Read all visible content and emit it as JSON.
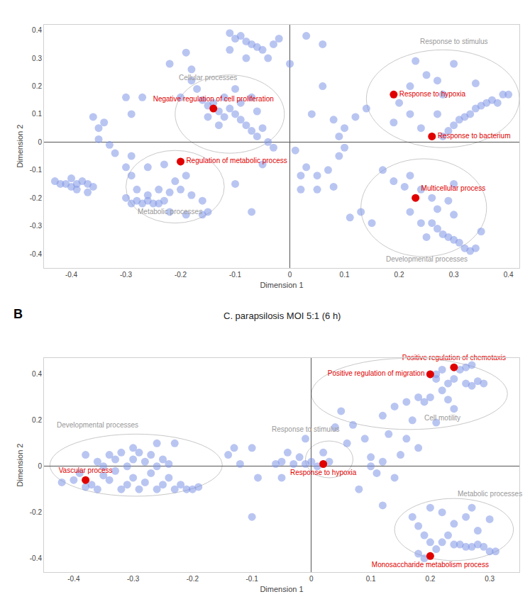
{
  "chart_data": [
    {
      "type": "scatter",
      "x_label": "Dimension 1",
      "y_label": "Dimension 2",
      "xlim": [
        -0.45,
        0.42
      ],
      "ylim": [
        -0.45,
        0.42
      ],
      "xticks": [
        -0.4,
        -0.3,
        -0.2,
        -0.1,
        0,
        0.1,
        0.2,
        0.3,
        0.4
      ],
      "yticks": [
        -0.4,
        -0.3,
        -0.2,
        -0.1,
        0,
        0.1,
        0.2,
        0.3,
        0.4
      ],
      "color": "#8096e6",
      "x": [
        -0.43,
        -0.42,
        -0.41,
        -0.4,
        -0.39,
        -0.38,
        -0.37,
        -0.36,
        -0.4,
        -0.39,
        -0.37,
        -0.36,
        -0.35,
        -0.34,
        -0.35,
        -0.33,
        -0.32,
        -0.3,
        -0.29,
        -0.27,
        -0.29,
        -0.29,
        -0.28,
        -0.3,
        -0.29,
        -0.28,
        -0.27,
        -0.26,
        -0.25,
        -0.24,
        -0.23,
        -0.26,
        -0.24,
        -0.22,
        -0.2,
        -0.21,
        -0.19,
        -0.22,
        -0.19,
        -0.16,
        -0.15,
        -0.16,
        -0.18,
        -0.23,
        -0.26,
        -0.3,
        -0.2,
        -0.18,
        -0.17,
        -0.16,
        -0.15,
        -0.14,
        -0.13,
        -0.12,
        -0.11,
        -0.1,
        -0.09,
        -0.08,
        -0.07,
        -0.06,
        -0.05,
        -0.04,
        -0.03,
        -0.12,
        -0.09,
        -0.07,
        -0.06,
        -0.1,
        -0.13,
        -0.15,
        -0.11,
        -0.1,
        -0.09,
        -0.08,
        -0.07,
        -0.06,
        -0.05,
        -0.04,
        -0.03,
        -0.02,
        0.03,
        -0.08,
        -0.11,
        0.06,
        0.0,
        -0.19,
        -0.22,
        -0.18,
        -0.05,
        0.01,
        0.03,
        0.05,
        0.07,
        0.09,
        0.1,
        0.09,
        0.1,
        0.08,
        0.12,
        0.14,
        0.02,
        0.05,
        0.08,
        -0.07,
        -0.1,
        0.13,
        0.15,
        0.11,
        0.02,
        0.06,
        0.04,
        0.19,
        0.2,
        0.22,
        0.23,
        0.25,
        0.27,
        0.28,
        0.27,
        0.24,
        0.29,
        0.3,
        0.31,
        0.32,
        0.33,
        0.34,
        0.35,
        0.36,
        0.37,
        0.38,
        0.39,
        0.4,
        0.34,
        0.3,
        0.22,
        0.28,
        0.17,
        0.19,
        0.21,
        0.22,
        0.24,
        0.26,
        0.27,
        0.26,
        0.27,
        0.28,
        0.29,
        0.3,
        0.31,
        0.32,
        0.33,
        0.34,
        0.25,
        0.29,
        0.3,
        0.35,
        0.3,
        0.22,
        0.24
      ],
      "y": [
        -0.14,
        -0.15,
        -0.15,
        -0.16,
        -0.15,
        -0.14,
        -0.15,
        -0.16,
        -0.13,
        -0.17,
        -0.18,
        0.09,
        0.05,
        0.07,
        0.01,
        -0.01,
        -0.04,
        0.16,
        0.1,
        0.16,
        -0.05,
        -0.12,
        -0.17,
        -0.2,
        -0.22,
        -0.21,
        -0.22,
        -0.21,
        -0.22,
        -0.22,
        -0.21,
        -0.19,
        -0.17,
        -0.18,
        -0.17,
        -0.14,
        -0.12,
        -0.25,
        -0.26,
        -0.26,
        -0.25,
        -0.21,
        -0.19,
        -0.08,
        -0.09,
        -0.09,
        0.16,
        0.22,
        0.19,
        0.15,
        0.13,
        0.14,
        0.11,
        0.09,
        0.12,
        0.1,
        0.08,
        0.06,
        0.04,
        0.02,
        0.05,
        0.0,
        -0.02,
        0.16,
        0.14,
        0.16,
        0.11,
        0.19,
        0.06,
        0.09,
        0.39,
        0.37,
        0.38,
        0.36,
        0.35,
        0.34,
        0.33,
        0.3,
        0.35,
        0.37,
        0.38,
        0.3,
        0.33,
        0.35,
        0.28,
        0.32,
        0.28,
        0.26,
        -0.08,
        -0.03,
        -0.09,
        -0.12,
        -0.1,
        -0.05,
        -0.02,
        0.02,
        0.05,
        0.08,
        0.09,
        0.12,
        -0.17,
        -0.17,
        -0.16,
        -0.25,
        -0.15,
        -0.25,
        -0.29,
        -0.27,
        -0.12,
        0.2,
        0.1,
        0.07,
        0.14,
        0.2,
        0.29,
        0.24,
        0.22,
        0.17,
        0.1,
        0.05,
        0.04,
        0.06,
        0.08,
        0.09,
        0.1,
        0.12,
        0.13,
        0.14,
        0.15,
        0.14,
        0.17,
        0.17,
        0.21,
        0.28,
        0.1,
        0.02,
        -0.1,
        -0.14,
        -0.16,
        -0.12,
        -0.17,
        -0.2,
        -0.24,
        -0.29,
        -0.31,
        -0.33,
        -0.34,
        -0.35,
        -0.36,
        -0.38,
        -0.39,
        -0.38,
        -0.34,
        -0.21,
        -0.26,
        -0.32,
        -0.15,
        -0.25,
        -0.29
      ],
      "highlights": {
        "color": "#e00000",
        "points": [
          {
            "label": "Negative regulation of cell proliferation",
            "x": -0.14,
            "y": 0.12
          },
          {
            "label": "Regulation of metabolic process",
            "x": -0.2,
            "y": -0.07
          },
          {
            "label": "Response to hypoxia",
            "x": 0.19,
            "y": 0.17
          },
          {
            "label": "Response to bacterium",
            "x": 0.26,
            "y": 0.02
          },
          {
            "label": "Multicellular process",
            "x": 0.23,
            "y": -0.2
          }
        ]
      },
      "clusters": [
        {
          "label": "Response to stimulus",
          "x": 0.3,
          "y": 0.36,
          "bounds": [
            0.14,
            0.42,
            -0.02,
            0.33
          ]
        },
        {
          "label": "Cellular processes",
          "x": -0.15,
          "y": 0.23,
          "bounds": [
            -0.21,
            -0.01,
            -0.04,
            0.24
          ]
        },
        {
          "label": "Metabolic processes",
          "x": -0.22,
          "y": -0.25,
          "bounds": [
            -0.3,
            -0.12,
            -0.29,
            -0.03
          ]
        },
        {
          "label": "Developmental processes",
          "x": 0.25,
          "y": -0.42,
          "bounds": [
            0.13,
            0.36,
            -0.41,
            -0.06
          ]
        }
      ]
    },
    {
      "type": "scatter",
      "panel": "B",
      "title": "C. parapsilosis MOI 5:1 (6 h)",
      "x_label": "Dimension 1",
      "y_label": "Dimension 2",
      "xlim": [
        -0.45,
        0.35
      ],
      "ylim": [
        -0.46,
        0.47
      ],
      "xticks": [
        -0.4,
        -0.3,
        -0.2,
        -0.1,
        0,
        0.1,
        0.2,
        0.3
      ],
      "yticks": [
        -0.4,
        -0.2,
        0,
        0.2,
        0.4
      ],
      "color": "#8096e6",
      "x": [
        -0.42,
        -0.4,
        -0.39,
        -0.38,
        -0.37,
        -0.36,
        -0.35,
        -0.34,
        -0.33,
        -0.32,
        -0.31,
        -0.3,
        -0.29,
        -0.28,
        -0.27,
        -0.26,
        -0.25,
        -0.24,
        -0.23,
        -0.22,
        -0.21,
        -0.2,
        -0.19,
        -0.34,
        -0.33,
        -0.32,
        -0.31,
        -0.3,
        -0.29,
        -0.28,
        -0.27,
        -0.26,
        -0.25,
        -0.24,
        -0.23,
        -0.26,
        -0.3,
        -0.36,
        -0.35,
        -0.38,
        -0.14,
        -0.13,
        -0.12,
        -0.1,
        -0.09,
        -0.1,
        -0.06,
        -0.05,
        -0.04,
        -0.02,
        -0.01,
        0.0,
        0.01,
        0.03,
        0.02,
        -0.01,
        0.04,
        0.05,
        0.07,
        0.06,
        0.09,
        0.1,
        0.12,
        0.11,
        0.1,
        0.13,
        0.08,
        0.12,
        0.14,
        0.15,
        0.16,
        0.18,
        -0.05,
        -0.03,
        0.12,
        0.14,
        0.16,
        0.18,
        0.2,
        0.22,
        0.23,
        0.24,
        0.25,
        0.26,
        0.27,
        0.26,
        0.27,
        0.28,
        0.29,
        0.2,
        0.21,
        0.21,
        0.22,
        0.19,
        0.23,
        0.17,
        0.21,
        0.24,
        0.17,
        0.18,
        0.19,
        0.2,
        0.21,
        0.22,
        0.23,
        0.24,
        0.25,
        0.26,
        0.27,
        0.28,
        0.29,
        0.3,
        0.31,
        0.24,
        0.26,
        0.22,
        0.2,
        0.28,
        0.3,
        0.27,
        0.18,
        0.19
      ],
      "y": [
        -0.07,
        -0.06,
        -0.03,
        -0.09,
        -0.08,
        -0.1,
        -0.04,
        -0.06,
        -0.02,
        -0.1,
        -0.08,
        -0.05,
        -0.1,
        -0.07,
        -0.03,
        -0.1,
        -0.08,
        -0.05,
        -0.1,
        -0.08,
        -0.1,
        -0.1,
        -0.09,
        0.05,
        0.03,
        0.06,
        0.0,
        0.03,
        0.06,
        0.02,
        0.05,
        0.0,
        0.03,
        0.01,
        0.1,
        0.1,
        0.08,
        0.02,
        0.0,
        0.05,
        0.05,
        0.08,
        0.01,
        0.08,
        -0.05,
        -0.22,
        0.01,
        -0.05,
        0.06,
        0.04,
        0.01,
        0.02,
        0.0,
        0.02,
        0.06,
        0.12,
        0.17,
        0.24,
        0.18,
        0.1,
        0.12,
        0.04,
        0.02,
        -0.03,
        0.0,
        0.14,
        -0.1,
        -0.17,
        -0.05,
        0.05,
        0.12,
        0.08,
        0.02,
        0.01,
        0.22,
        0.26,
        0.28,
        0.3,
        0.3,
        0.33,
        0.36,
        0.38,
        0.42,
        0.43,
        0.44,
        0.36,
        0.35,
        0.37,
        0.36,
        0.4,
        0.4,
        0.38,
        0.42,
        0.28,
        0.29,
        0.2,
        0.19,
        0.25,
        -0.22,
        -0.26,
        -0.3,
        -0.33,
        -0.36,
        -0.33,
        -0.3,
        -0.34,
        -0.34,
        -0.35,
        -0.35,
        -0.34,
        -0.35,
        -0.37,
        -0.37,
        -0.25,
        -0.22,
        -0.2,
        -0.18,
        -0.28,
        -0.23,
        -0.18,
        -0.38,
        -0.4
      ],
      "highlights": {
        "color": "#e00000",
        "points": [
          {
            "label": "Positive regulation of chemotaxis",
            "x": 0.24,
            "y": 0.43
          },
          {
            "label": "Positive regulation of migration",
            "x": 0.2,
            "y": 0.4
          },
          {
            "label": "Response to hypoxia",
            "x": 0.02,
            "y": 0.01
          },
          {
            "label": "Vascular process",
            "x": -0.38,
            "y": -0.06
          },
          {
            "label": "Monosaccharide metabolism process",
            "x": 0.2,
            "y": -0.39
          }
        ]
      },
      "clusters": [
        {
          "label": "Developmental processes",
          "x": -0.36,
          "y": 0.18,
          "bounds": [
            -0.44,
            -0.15,
            -0.13,
            0.14
          ]
        },
        {
          "label": "Response to stimulus",
          "x": -0.01,
          "y": 0.16,
          "bounds": [
            -0.01,
            0.07,
            -0.05,
            0.11
          ]
        },
        {
          "label": "Cell motility",
          "x": 0.22,
          "y": 0.21,
          "bounds": [
            0.0,
            0.33,
            0.16,
            0.47
          ]
        },
        {
          "label": "Metabolic processes",
          "x": 0.3,
          "y": -0.12,
          "bounds": [
            0.14,
            0.34,
            -0.41,
            -0.14
          ]
        }
      ]
    }
  ]
}
